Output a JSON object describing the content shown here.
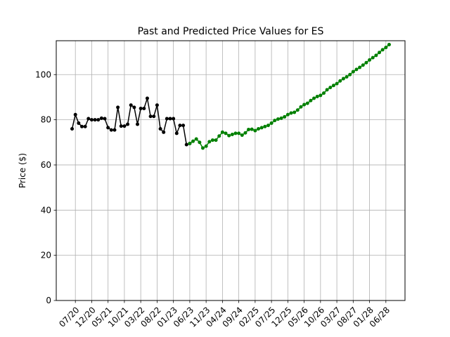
{
  "chart_data": {
    "type": "line",
    "title": "Past and Predicted Price Values for ES",
    "xlabel": "",
    "ylabel": "Price ($)",
    "ylim": [
      0,
      115
    ],
    "yticks": [
      0,
      20,
      40,
      60,
      80,
      100
    ],
    "grid": true,
    "x_tick_labels": [
      "07/20",
      "12/20",
      "05/21",
      "10/21",
      "03/22",
      "08/22",
      "01/23",
      "06/23",
      "11/23",
      "04/24",
      "09/24",
      "02/25",
      "07/25",
      "12/25",
      "05/26",
      "10/26",
      "03/27",
      "08/27",
      "01/28",
      "06/28"
    ],
    "series": [
      {
        "color": "#000000",
        "values": [
          [
            "2020-06-01",
            76.0
          ],
          [
            "2020-07-01",
            82.3
          ],
          [
            "2020-08-01",
            78.5
          ],
          [
            "2020-09-01",
            77.0
          ],
          [
            "2020-10-01",
            77.0
          ],
          [
            "2020-11-01",
            80.5
          ],
          [
            "2020-12-01",
            80.0
          ],
          [
            "2021-01-01",
            80.0
          ],
          [
            "2021-02-01",
            80.0
          ],
          [
            "2021-03-01",
            80.7
          ],
          [
            "2021-04-01",
            80.5
          ],
          [
            "2021-05-01",
            76.5
          ],
          [
            "2021-06-01",
            75.5
          ],
          [
            "2021-07-01",
            75.5
          ],
          [
            "2021-08-01",
            85.5
          ],
          [
            "2021-09-01",
            77.2
          ],
          [
            "2021-10-01",
            77.2
          ],
          [
            "2021-11-01",
            78.0
          ],
          [
            "2021-12-01",
            86.5
          ],
          [
            "2022-01-01",
            85.5
          ],
          [
            "2022-02-01",
            78.0
          ],
          [
            "2022-03-01",
            85.0
          ],
          [
            "2022-04-01",
            85.0
          ],
          [
            "2022-05-01",
            89.5
          ],
          [
            "2022-06-01",
            81.5
          ],
          [
            "2022-07-01",
            81.5
          ],
          [
            "2022-08-01",
            86.5
          ],
          [
            "2022-09-01",
            76.0
          ],
          [
            "2022-10-01",
            74.5
          ],
          [
            "2022-11-01",
            80.5
          ],
          [
            "2022-12-01",
            80.5
          ],
          [
            "2023-01-01",
            80.5
          ],
          [
            "2023-02-01",
            74.0
          ],
          [
            "2023-03-01",
            77.5
          ],
          [
            "2023-04-01",
            77.5
          ],
          [
            "2023-05-01",
            69.0
          ],
          [
            "2023-06-01",
            69.5
          ]
        ]
      },
      {
        "color": "#008000",
        "values": [
          [
            "2023-06-01",
            69.5
          ],
          [
            "2023-07-01",
            70.5
          ],
          [
            "2023-08-01",
            71.5
          ],
          [
            "2023-09-01",
            70.0
          ],
          [
            "2023-10-01",
            67.5
          ],
          [
            "2023-11-01",
            68.3
          ],
          [
            "2023-12-01",
            70.3
          ],
          [
            "2024-01-01",
            71.0
          ],
          [
            "2024-02-01",
            71.0
          ],
          [
            "2024-03-01",
            72.8
          ],
          [
            "2024-04-01",
            74.5
          ],
          [
            "2024-05-01",
            74.0
          ],
          [
            "2024-06-01",
            73.0
          ],
          [
            "2024-07-01",
            73.5
          ],
          [
            "2024-08-01",
            74.0
          ],
          [
            "2024-09-01",
            74.0
          ],
          [
            "2024-10-01",
            73.2
          ],
          [
            "2024-11-01",
            74.2
          ],
          [
            "2024-12-01",
            75.7
          ],
          [
            "2025-01-01",
            75.8
          ],
          [
            "2025-02-01",
            75.2
          ],
          [
            "2025-03-01",
            76.0
          ],
          [
            "2025-04-01",
            76.5
          ],
          [
            "2025-05-01",
            77.0
          ],
          [
            "2025-06-01",
            77.5
          ],
          [
            "2025-07-01",
            78.5
          ],
          [
            "2025-08-01",
            79.7
          ],
          [
            "2025-09-01",
            80.3
          ],
          [
            "2025-10-01",
            80.7
          ],
          [
            "2025-11-01",
            81.3
          ],
          [
            "2025-12-01",
            82.3
          ],
          [
            "2026-01-01",
            83.0
          ],
          [
            "2026-02-01",
            83.3
          ],
          [
            "2026-03-01",
            84.3
          ],
          [
            "2026-04-01",
            85.7
          ],
          [
            "2026-05-01",
            86.7
          ],
          [
            "2026-06-01",
            87.3
          ],
          [
            "2026-07-01",
            88.5
          ],
          [
            "2026-08-01",
            89.5
          ],
          [
            "2026-09-01",
            90.3
          ],
          [
            "2026-10-01",
            90.8
          ],
          [
            "2026-11-01",
            91.8
          ],
          [
            "2026-12-01",
            93.3
          ],
          [
            "2027-01-01",
            94.3
          ],
          [
            "2027-02-01",
            95.2
          ],
          [
            "2027-03-01",
            96.0
          ],
          [
            "2027-04-01",
            97.2
          ],
          [
            "2027-05-01",
            98.2
          ],
          [
            "2027-06-01",
            99.0
          ],
          [
            "2027-07-01",
            100.0
          ],
          [
            "2027-08-01",
            101.3
          ],
          [
            "2027-09-01",
            102.3
          ],
          [
            "2027-10-01",
            103.2
          ],
          [
            "2027-11-01",
            104.2
          ],
          [
            "2027-12-01",
            105.3
          ],
          [
            "2028-01-01",
            106.5
          ],
          [
            "2028-02-01",
            107.5
          ],
          [
            "2028-03-01",
            108.5
          ],
          [
            "2028-04-01",
            109.8
          ],
          [
            "2028-05-01",
            111.0
          ],
          [
            "2028-06-01",
            112.0
          ],
          [
            "2028-07-01",
            113.3
          ]
        ]
      }
    ]
  }
}
